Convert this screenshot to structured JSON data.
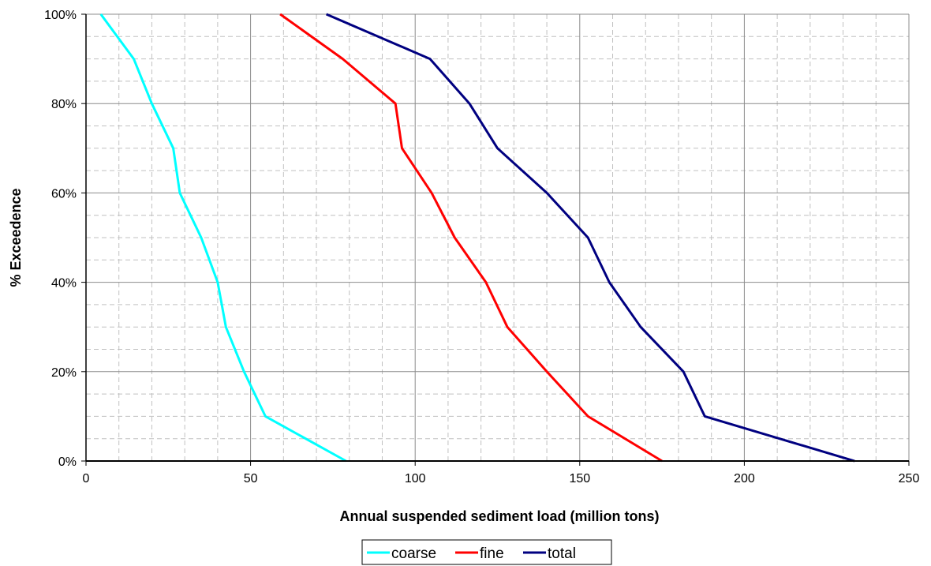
{
  "chart_data": {
    "type": "line",
    "title": "",
    "xlabel": "Annual suspended sediment load (million tons)",
    "ylabel": "% Exceedence",
    "xlim": [
      0,
      250
    ],
    "ylim": [
      0,
      100
    ],
    "x_ticks": [
      0,
      50,
      100,
      150,
      200,
      250
    ],
    "x_tick_labels": [
      "0",
      "50",
      "100",
      "150",
      "200",
      "250"
    ],
    "y_ticks": [
      0,
      20,
      40,
      60,
      80,
      100
    ],
    "y_tick_labels": [
      "0%",
      "20%",
      "40%",
      "60%",
      "80%",
      "100%"
    ],
    "x_minor_step": 10,
    "y_minor_step": 5,
    "grid": true,
    "legend_position": "bottom",
    "series": [
      {
        "name": "coarse",
        "color": "#00ffff",
        "points": [
          [
            4.5,
            100
          ],
          [
            14.5,
            90
          ],
          [
            20,
            80
          ],
          [
            26.5,
            70
          ],
          [
            28.5,
            60
          ],
          [
            35,
            50
          ],
          [
            40,
            40
          ],
          [
            42.5,
            30
          ],
          [
            48,
            20
          ],
          [
            54.5,
            10
          ],
          [
            79,
            0
          ]
        ]
      },
      {
        "name": "fine",
        "color": "#ff0000",
        "points": [
          [
            59,
            100
          ],
          [
            78,
            90
          ],
          [
            94,
            80
          ],
          [
            96,
            70
          ],
          [
            105,
            60
          ],
          [
            112,
            50
          ],
          [
            121.5,
            40
          ],
          [
            128,
            30
          ],
          [
            140,
            20
          ],
          [
            152.5,
            10
          ],
          [
            175,
            0
          ]
        ]
      },
      {
        "name": "total",
        "color": "#000080",
        "points": [
          [
            73,
            100
          ],
          [
            104.5,
            90
          ],
          [
            116.5,
            80
          ],
          [
            125,
            70
          ],
          [
            140,
            60
          ],
          [
            152.5,
            50
          ],
          [
            159,
            40
          ],
          [
            168.5,
            30
          ],
          [
            181.5,
            20
          ],
          [
            188,
            10
          ],
          [
            233.5,
            0
          ]
        ]
      }
    ]
  }
}
